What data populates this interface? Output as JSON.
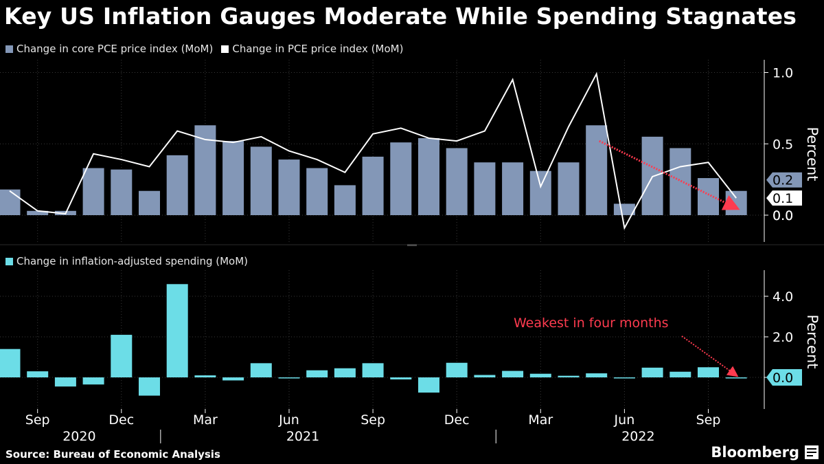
{
  "title": "Key US Inflation Gauges Moderate While Spending Stagnates",
  "source": "Source: Bureau of Economic Analysis",
  "brand": "Bloomberg",
  "colors": {
    "core_bar": "#8397b7",
    "pce_line": "#ffffff",
    "spending_bar": "#6cdde7",
    "annotation": "#ff3b4f",
    "grid": "#3a3a3a"
  },
  "chart_data": [
    {
      "type": "bar",
      "ylabel": "Percent",
      "ylim": [
        -0.18,
        1.1
      ],
      "yticks": [
        "0.0",
        "0.5",
        "1.0"
      ],
      "categories": [
        "Aug 2020",
        "Sep 2020",
        "Oct 2020",
        "Nov 2020",
        "Dec 2020",
        "Jan 2021",
        "Feb 2021",
        "Mar 2021",
        "Apr 2021",
        "May 2021",
        "Jun 2021",
        "Jul 2021",
        "Aug 2021",
        "Sep 2021",
        "Oct 2021",
        "Nov 2021",
        "Dec 2021",
        "Jan 2022",
        "Feb 2022",
        "Mar 2022",
        "Apr 2022",
        "May 2022",
        "Jun 2022",
        "Jul 2022",
        "Aug 2022",
        "Sep 2022",
        "Oct 2022"
      ],
      "series": [
        {
          "name": "Change in core PCE price index (MoM)",
          "kind": "bar",
          "values": [
            0.18,
            0.03,
            0.03,
            0.33,
            0.32,
            0.17,
            0.42,
            0.63,
            0.52,
            0.48,
            0.39,
            0.33,
            0.21,
            0.41,
            0.51,
            0.54,
            0.47,
            0.37,
            0.37,
            0.31,
            0.37,
            0.63,
            0.08,
            0.55,
            0.47,
            0.26,
            0.17
          ]
        },
        {
          "name": "Change in PCE price index (MoM)",
          "kind": "line",
          "values": [
            0.17,
            0.03,
            0.01,
            0.43,
            0.39,
            0.34,
            0.59,
            0.53,
            0.51,
            0.55,
            0.45,
            0.39,
            0.3,
            0.57,
            0.61,
            0.54,
            0.52,
            0.59,
            0.95,
            0.2,
            0.62,
            0.99,
            -0.09,
            0.27,
            0.34,
            0.37,
            0.12
          ]
        }
      ],
      "end_labels": [
        "0.2",
        "0.1",
        "0.0"
      ]
    },
    {
      "type": "bar",
      "ylabel": "Percent",
      "ylim": [
        -1.5,
        5.1
      ],
      "yticks": [
        "0.0",
        "2.0",
        "4.0"
      ],
      "categories": [
        "Aug 2020",
        "Sep 2020",
        "Oct 2020",
        "Nov 2020",
        "Dec 2020",
        "Jan 2021",
        "Feb 2021",
        "Mar 2021",
        "Apr 2021",
        "May 2021",
        "Jun 2021",
        "Jul 2021",
        "Aug 2021",
        "Sep 2021",
        "Oct 2021",
        "Nov 2021",
        "Dec 2021",
        "Jan 2022",
        "Feb 2022",
        "Mar 2022",
        "Apr 2022",
        "May 2022",
        "Jun 2022",
        "Jul 2022",
        "Aug 2022",
        "Sep 2022",
        "Oct 2022"
      ],
      "series": [
        {
          "name": "Change in inflation-adjusted spending (MoM)",
          "kind": "bar",
          "values": [
            1.4,
            0.3,
            -0.45,
            -0.35,
            2.1,
            -0.9,
            4.6,
            0.1,
            -0.15,
            0.7,
            -0.05,
            0.35,
            0.45,
            0.7,
            -0.1,
            -0.75,
            0.72,
            0.12,
            0.32,
            0.18,
            0.08,
            0.2,
            -0.05,
            0.48,
            0.28,
            0.5,
            0.0
          ]
        }
      ],
      "end_labels": [
        "0.0"
      ],
      "annotation": "Weakest in four months"
    }
  ],
  "x_axis": {
    "month_labels": [
      "Sep",
      "Dec",
      "Mar",
      "Jun",
      "Sep",
      "Dec",
      "Mar",
      "Jun",
      "Sep"
    ],
    "month_label_index": [
      1,
      4,
      7,
      10,
      13,
      16,
      19,
      22,
      25
    ],
    "year_labels": [
      "2020",
      "2021",
      "2022"
    ],
    "year_label_index": [
      2,
      10,
      22
    ],
    "year_divider_index": [
      5,
      17
    ]
  }
}
